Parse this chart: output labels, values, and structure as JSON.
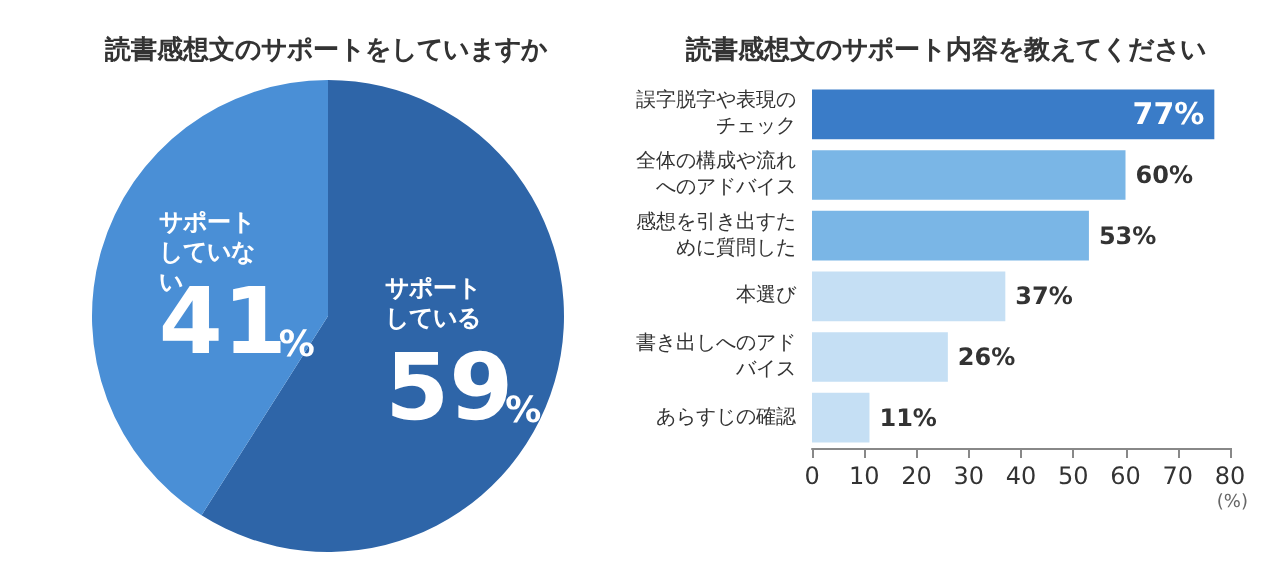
{
  "chart_data": [
    {
      "type": "pie",
      "title": "読書感想文のサポートをしていますか",
      "categories": [
        "サポートしている",
        "サポートしていない"
      ],
      "values": [
        59,
        41
      ],
      "colors": [
        "#2e65a8",
        "#4a8fd6"
      ],
      "value_labels": [
        "59%",
        "41%"
      ],
      "legend": false
    },
    {
      "type": "bar",
      "orientation": "horizontal",
      "title": "読書感想文のサポート内容を教えてください",
      "categories": [
        "誤字脱字や表現のチェック",
        "全体の構成や流れへのアドバイス",
        "感想を引き出すために質問した",
        "本選び",
        "書き出しへのアドバイス",
        "あらすじの確認"
      ],
      "values": [
        77,
        60,
        53,
        37,
        26,
        11
      ],
      "colors": [
        "#3a7cc8",
        "#7ab6e6",
        "#7ab6e6",
        "#c5dff4",
        "#c5dff4",
        "#c5dff4"
      ],
      "value_labels": [
        "77%",
        "60%",
        "53%",
        "37%",
        "26%",
        "11%"
      ],
      "xlabel": "(%)",
      "xlim": [
        0,
        80
      ],
      "xticks": [
        0,
        10,
        20,
        30,
        40,
        50,
        60,
        70,
        80
      ],
      "grid": false,
      "legend": false
    }
  ]
}
